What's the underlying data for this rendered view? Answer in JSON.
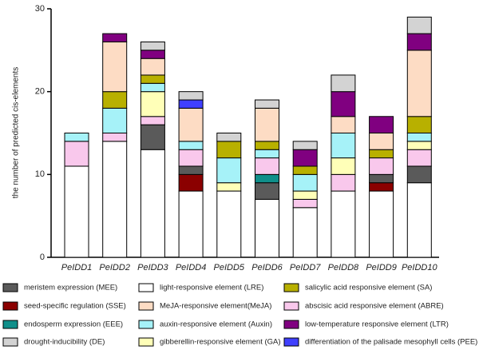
{
  "chart_data": {
    "type": "stacked_bar",
    "y_label": "the number of predicted cis-elements",
    "categories": [
      "PeIDD1",
      "PeIDD2",
      "PeIDD3",
      "PeIDD4",
      "PeIDD5",
      "PeIDD6",
      "PeIDD7",
      "PeIDD8",
      "PeIDD9",
      "PeIDD10"
    ],
    "ylim": [
      0,
      30
    ],
    "yticks": [
      0,
      10,
      20,
      30
    ],
    "series": [
      {
        "name": "meristem expression (MEE)",
        "color": "#5a5a5a",
        "values": [
          0,
          0,
          3,
          1,
          0,
          2,
          0,
          0,
          1,
          2
        ]
      },
      {
        "name": "light-responsive element (LRE)",
        "color": "#ffffff",
        "values": [
          11,
          14,
          13,
          8,
          8,
          7,
          6,
          8,
          8,
          9
        ]
      },
      {
        "name": "salicylic acid responsive element (SA)",
        "color": "#b8b000",
        "values": [
          0,
          2,
          1,
          0,
          2,
          1,
          1,
          0,
          1,
          2
        ]
      },
      {
        "name": "seed-specific regulation (SSE)",
        "color": "#8b0000",
        "values": [
          0,
          0,
          0,
          2,
          0,
          0,
          0,
          0,
          1,
          0
        ]
      },
      {
        "name": "MeJA-responsive element(MeJA)",
        "color": "#fddcc4",
        "values": [
          0,
          6,
          2,
          4,
          0,
          4,
          0,
          2,
          2,
          8
        ]
      },
      {
        "name": "abscisic acid responsive element (ABRE)",
        "color": "#f9c8ec",
        "values": [
          3,
          1,
          1,
          2,
          0,
          2,
          1,
          2,
          2,
          2
        ]
      },
      {
        "name": "endosperm expression (EEE)",
        "color": "#108f8a",
        "values": [
          0,
          0,
          0,
          0,
          0,
          1,
          0,
          0,
          0,
          0
        ]
      },
      {
        "name": "auxin-responsive element (Auxin)",
        "color": "#a6f2f8",
        "values": [
          1,
          3,
          1,
          1,
          3,
          1,
          2,
          3,
          0,
          1
        ]
      },
      {
        "name": "low-temperature responsive element (LTR)",
        "color": "#800080",
        "values": [
          0,
          1,
          1,
          0,
          0,
          0,
          2,
          3,
          2,
          2
        ]
      },
      {
        "name": "drought-inducibility (DE)",
        "color": "#d3d3d3",
        "values": [
          0,
          0,
          1,
          1,
          1,
          1,
          1,
          2,
          0,
          2
        ]
      },
      {
        "name": "gibberellin-responsive element (GA)",
        "color": "#ffffb8",
        "values": [
          0,
          0,
          3,
          0,
          1,
          0,
          1,
          2,
          0,
          1
        ]
      },
      {
        "name": "differentiation of the palisade mesophyll cells (PEE)",
        "color": "#4040ff",
        "values": [
          0,
          0,
          0,
          1,
          0,
          0,
          0,
          0,
          0,
          0
        ]
      }
    ]
  }
}
